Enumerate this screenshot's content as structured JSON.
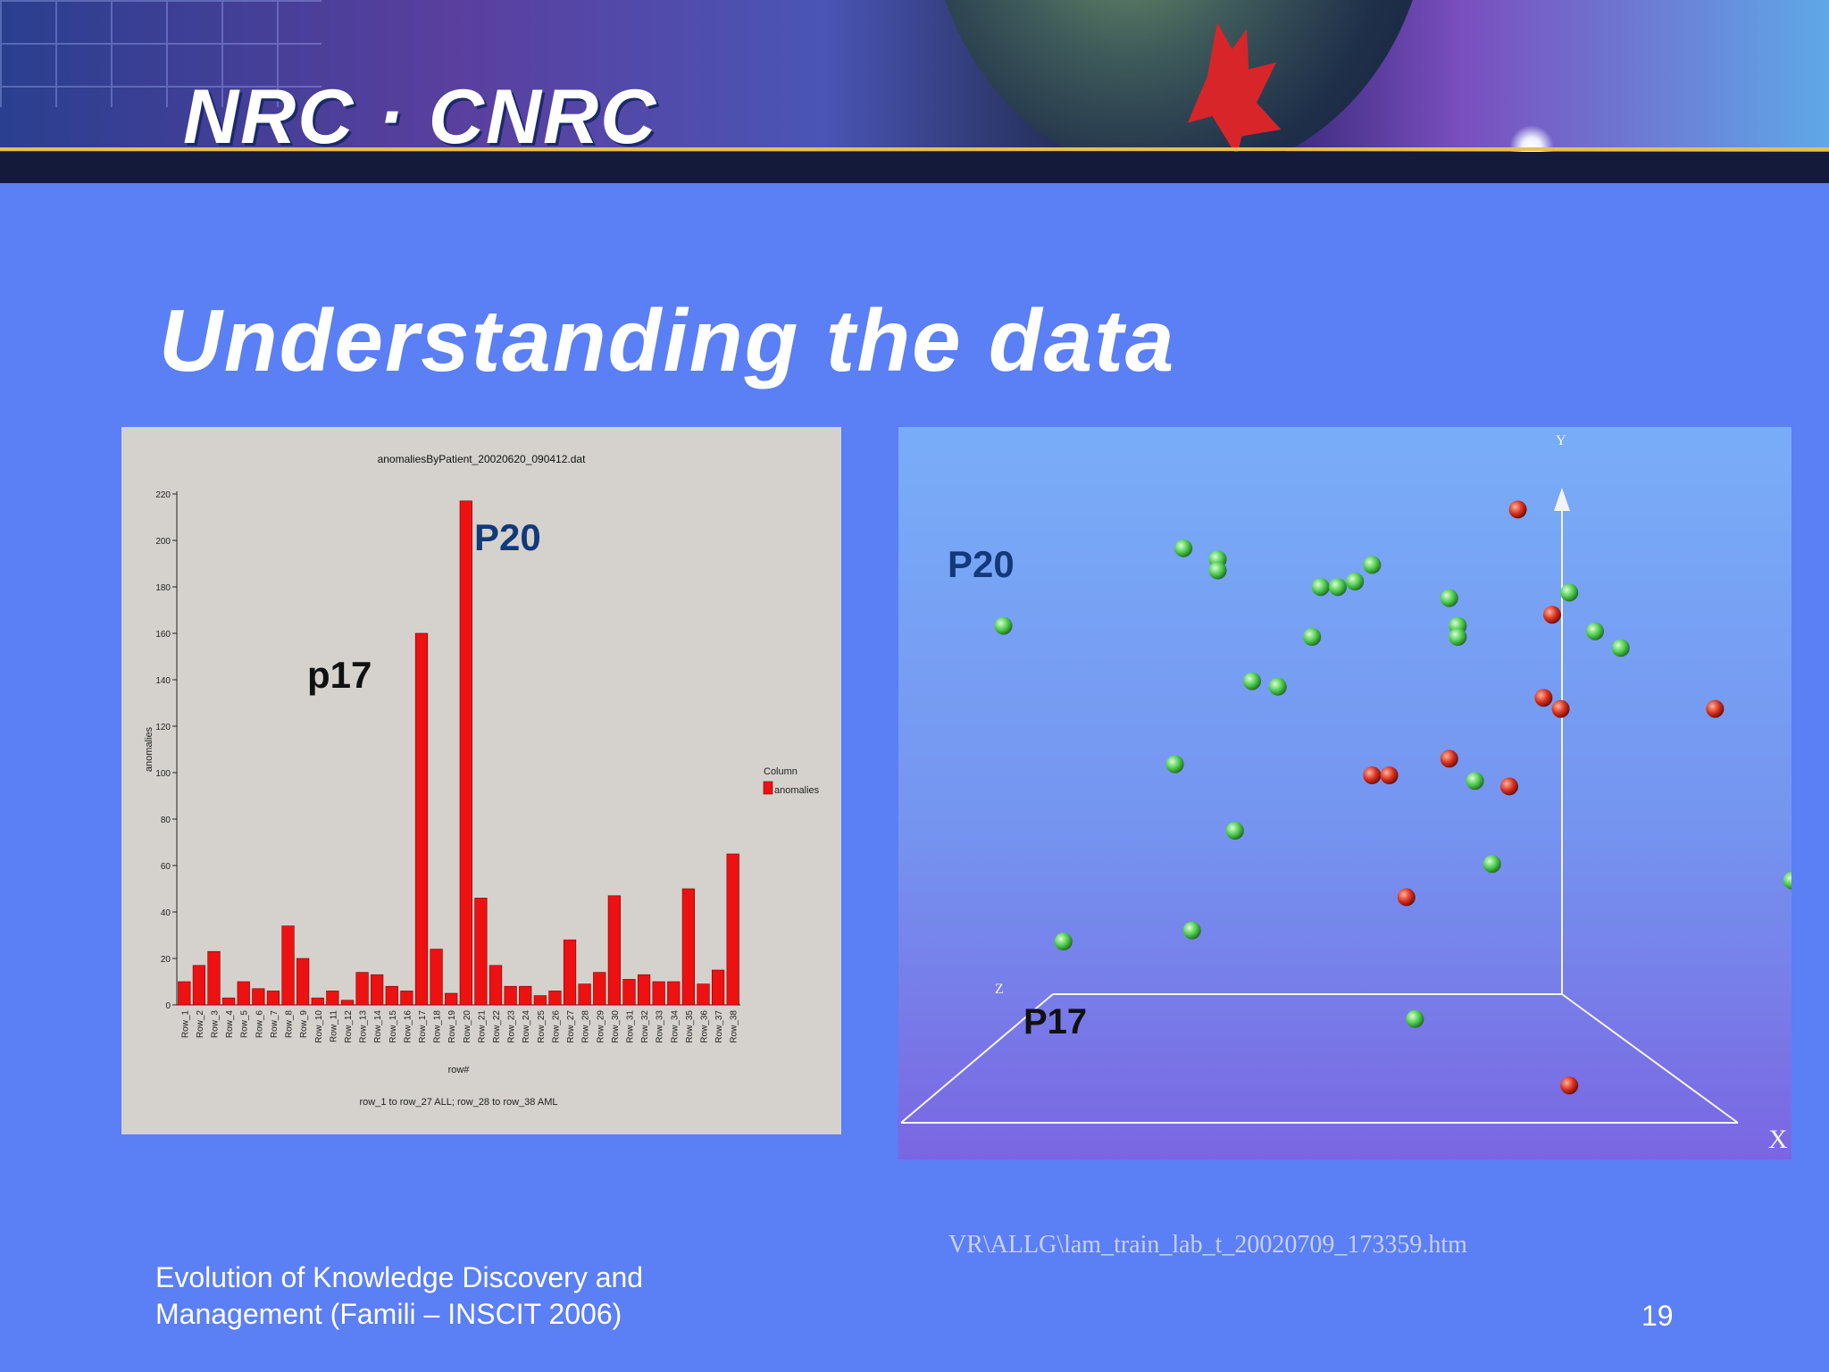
{
  "banner": {
    "logo_text": "NRC · CNRC"
  },
  "slide_title": "Understanding the data",
  "bar_annotations": {
    "p20": "P20",
    "p17": "p17"
  },
  "scatter_annotations": {
    "p20": "P20",
    "p17": "P17"
  },
  "footer": {
    "left_text": "Evolution of Knowledge Discovery and Management (Famili – INSCIT 2006)",
    "file_link": "VR\\ALLG\\lam_train_lab_t_20020709_173359.htm",
    "page_number": "19"
  },
  "colors": {
    "background": "#5b7ff5",
    "bar": "#ee1111",
    "green_point": "#4ecb4e",
    "red_point": "#d8301f",
    "annotation_blue": "#123a7a"
  },
  "chart_data": [
    {
      "type": "bar",
      "title": "anomaliesByPatient_20020620_090412.dat",
      "xlabel": "row#",
      "ylabel": "anomalies",
      "subtitle": "row_1 to row_27 ALL; row_28 to row_38 AML",
      "ylim": [
        0,
        220
      ],
      "yticks": [
        0,
        20,
        40,
        60,
        80,
        100,
        120,
        140,
        160,
        180,
        200,
        220
      ],
      "legend": {
        "title": "Column",
        "placement": "right"
      },
      "categories": [
        "Row_1",
        "Row_2",
        "Row_3",
        "Row_4",
        "Row_5",
        "Row_6",
        "Row_7",
        "Row_8",
        "Row_9",
        "Row_10",
        "Row_11",
        "Row_12",
        "Row_13",
        "Row_14",
        "Row_15",
        "Row_16",
        "Row_17",
        "Row_18",
        "Row_19",
        "Row_20",
        "Row_21",
        "Row_22",
        "Row_23",
        "Row_24",
        "Row_25",
        "Row_26",
        "Row_27",
        "Row_28",
        "Row_29",
        "Row_30",
        "Row_31",
        "Row_32",
        "Row_33",
        "Row_34",
        "Row_35",
        "Row_36",
        "Row_37",
        "Row_38"
      ],
      "series": [
        {
          "name": "anomalies",
          "values": [
            10,
            17,
            23,
            3,
            10,
            7,
            6,
            34,
            20,
            3,
            6,
            2,
            14,
            13,
            8,
            6,
            160,
            24,
            5,
            217,
            46,
            17,
            8,
            8,
            4,
            6,
            28,
            9,
            14,
            47,
            11,
            13,
            10,
            10,
            50,
            9,
            15,
            65
          ]
        }
      ]
    },
    {
      "type": "scatter",
      "axes": {
        "x": "X",
        "y": "Y",
        "z": "Z"
      },
      "grid": false,
      "series": [
        {
          "color": "green",
          "points": [
            [
              0.06,
              0.77
            ],
            [
              0.13,
              0.2
            ],
            [
              0.26,
              0.52
            ],
            [
              0.27,
              0.91
            ],
            [
              0.28,
              0.22
            ],
            [
              0.31,
              0.89
            ],
            [
              0.31,
              0.87
            ],
            [
              0.33,
              0.4
            ],
            [
              0.35,
              0.67
            ],
            [
              0.38,
              0.66
            ],
            [
              0.42,
              0.75
            ],
            [
              0.43,
              0.84
            ],
            [
              0.45,
              0.84
            ],
            [
              0.47,
              0.85
            ],
            [
              0.49,
              0.88
            ],
            [
              0.54,
              0.06
            ],
            [
              0.58,
              0.82
            ],
            [
              0.59,
              0.77
            ],
            [
              0.59,
              0.75
            ],
            [
              0.61,
              0.49
            ],
            [
              0.63,
              0.34
            ],
            [
              0.72,
              0.83
            ],
            [
              0.75,
              0.76
            ],
            [
              0.78,
              0.73
            ],
            [
              0.98,
              0.31
            ]
          ]
        },
        {
          "color": "red",
          "points": [
            [
              0.49,
              0.5
            ],
            [
              0.51,
              0.5
            ],
            [
              0.53,
              0.28
            ],
            [
              0.58,
              0.53
            ],
            [
              0.65,
              0.48
            ],
            [
              0.66,
              0.98
            ],
            [
              0.7,
              0.79
            ],
            [
              0.69,
              0.64
            ],
            [
              0.71,
              0.62
            ],
            [
              0.72,
              -0.06
            ],
            [
              0.89,
              0.62
            ]
          ]
        }
      ]
    }
  ]
}
